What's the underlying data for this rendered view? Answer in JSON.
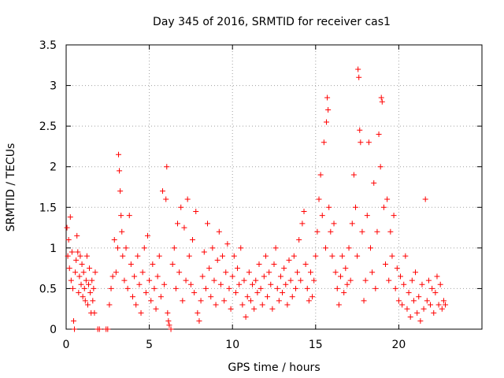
{
  "chart_data": {
    "type": "scatter",
    "title": "Day 345 of 2016, SRMTID for receiver cas1",
    "xlabel": "GPS time / hours",
    "ylabel": "SRMTID / TECUs",
    "xlim": [
      0,
      25
    ],
    "ylim": [
      0,
      3.5
    ],
    "xticks": [
      0,
      5,
      10,
      15,
      20
    ],
    "yticks": [
      0,
      0.5,
      1,
      1.5,
      2,
      2.5,
      3,
      3.5
    ],
    "xtick_labels": [
      "0",
      "5",
      "10",
      "15",
      "20"
    ],
    "ytick_labels": [
      "0",
      "0.5",
      "1",
      "1.5",
      "2",
      "2.5",
      "3",
      "3.5"
    ],
    "grid": true,
    "marker": "+",
    "color": "#ff0000",
    "series": [
      {
        "name": "SRMTID",
        "points": [
          [
            0.05,
            1.25
          ],
          [
            0.1,
            0.9
          ],
          [
            0.15,
            1.1
          ],
          [
            0.2,
            0.75
          ],
          [
            0.25,
            1.38
          ],
          [
            0.3,
            0.6
          ],
          [
            0.35,
            0.95
          ],
          [
            0.4,
            0.5
          ],
          [
            0.45,
            0.1
          ],
          [
            0.5,
            0.0
          ],
          [
            0.55,
            0.7
          ],
          [
            0.6,
            0.85
          ],
          [
            0.65,
            1.15
          ],
          [
            0.7,
            0.95
          ],
          [
            0.75,
            0.45
          ],
          [
            0.8,
            0.65
          ],
          [
            0.85,
            0.9
          ],
          [
            0.9,
            0.55
          ],
          [
            0.95,
            0.8
          ],
          [
            1.0,
            0.4
          ],
          [
            1.05,
            0.7
          ],
          [
            1.1,
            0.5
          ],
          [
            1.15,
            0.35
          ],
          [
            1.2,
            0.6
          ],
          [
            1.25,
            0.9
          ],
          [
            1.3,
            0.3
          ],
          [
            1.35,
            0.55
          ],
          [
            1.4,
            0.75
          ],
          [
            1.45,
            0.45
          ],
          [
            1.5,
            0.2
          ],
          [
            1.55,
            0.6
          ],
          [
            1.6,
            0.35
          ],
          [
            1.65,
            0.5
          ],
          [
            1.7,
            0.2
          ],
          [
            1.75,
            0.7
          ],
          [
            1.9,
            0.0
          ],
          [
            2.0,
            0.0
          ],
          [
            2.4,
            0.0
          ],
          [
            2.5,
            0.0
          ],
          [
            2.6,
            0.3
          ],
          [
            2.7,
            0.5
          ],
          [
            2.8,
            0.65
          ],
          [
            2.9,
            1.1
          ],
          [
            3.0,
            0.7
          ],
          [
            3.1,
            1.0
          ],
          [
            3.15,
            2.15
          ],
          [
            3.2,
            1.95
          ],
          [
            3.25,
            1.7
          ],
          [
            3.3,
            1.4
          ],
          [
            3.35,
            1.2
          ],
          [
            3.4,
            0.9
          ],
          [
            3.5,
            0.6
          ],
          [
            3.6,
            1.0
          ],
          [
            3.7,
            0.5
          ],
          [
            3.8,
            1.4
          ],
          [
            3.9,
            0.8
          ],
          [
            4.0,
            0.4
          ],
          [
            4.1,
            0.65
          ],
          [
            4.2,
            0.3
          ],
          [
            4.3,
            0.9
          ],
          [
            4.4,
            0.55
          ],
          [
            4.5,
            0.2
          ],
          [
            4.6,
            0.7
          ],
          [
            4.7,
            1.0
          ],
          [
            4.8,
            0.45
          ],
          [
            4.9,
            1.15
          ],
          [
            5.0,
            0.6
          ],
          [
            5.1,
            0.35
          ],
          [
            5.2,
            0.8
          ],
          [
            5.3,
            0.5
          ],
          [
            5.4,
            0.25
          ],
          [
            5.5,
            0.65
          ],
          [
            5.6,
            0.9
          ],
          [
            5.7,
            0.4
          ],
          [
            5.8,
            1.7
          ],
          [
            5.9,
            0.55
          ],
          [
            6.0,
            1.6
          ],
          [
            6.05,
            2.0
          ],
          [
            6.1,
            0.2
          ],
          [
            6.15,
            0.1
          ],
          [
            6.2,
            0.05
          ],
          [
            6.3,
            0.0
          ],
          [
            6.4,
            0.8
          ],
          [
            6.5,
            1.0
          ],
          [
            6.6,
            0.5
          ],
          [
            6.7,
            1.3
          ],
          [
            6.8,
            0.7
          ],
          [
            6.9,
            1.5
          ],
          [
            7.0,
            0.35
          ],
          [
            7.1,
            1.25
          ],
          [
            7.2,
            0.6
          ],
          [
            7.3,
            1.6
          ],
          [
            7.4,
            0.9
          ],
          [
            7.5,
            0.55
          ],
          [
            7.6,
            1.1
          ],
          [
            7.7,
            0.45
          ],
          [
            7.8,
            1.45
          ],
          [
            7.9,
            0.2
          ],
          [
            8.0,
            0.1
          ],
          [
            8.1,
            0.35
          ],
          [
            8.2,
            0.65
          ],
          [
            8.3,
            0.95
          ],
          [
            8.4,
            0.5
          ],
          [
            8.5,
            1.3
          ],
          [
            8.6,
            0.75
          ],
          [
            8.7,
            0.4
          ],
          [
            8.8,
            1.0
          ],
          [
            8.9,
            0.6
          ],
          [
            9.0,
            0.3
          ],
          [
            9.1,
            0.85
          ],
          [
            9.2,
            1.2
          ],
          [
            9.3,
            0.55
          ],
          [
            9.4,
            0.9
          ],
          [
            9.5,
            0.35
          ],
          [
            9.6,
            0.7
          ],
          [
            9.7,
            1.05
          ],
          [
            9.8,
            0.5
          ],
          [
            9.9,
            0.25
          ],
          [
            10.0,
            0.65
          ],
          [
            10.1,
            0.9
          ],
          [
            10.2,
            0.45
          ],
          [
            10.3,
            0.75
          ],
          [
            10.4,
            0.55
          ],
          [
            10.5,
            1.0
          ],
          [
            10.6,
            0.3
          ],
          [
            10.7,
            0.6
          ],
          [
            10.8,
            0.15
          ],
          [
            10.9,
            0.4
          ],
          [
            11.0,
            0.7
          ],
          [
            11.1,
            0.35
          ],
          [
            11.2,
            0.55
          ],
          [
            11.3,
            0.25
          ],
          [
            11.4,
            0.6
          ],
          [
            11.5,
            0.45
          ],
          [
            11.6,
            0.8
          ],
          [
            11.7,
            0.5
          ],
          [
            11.8,
            0.3
          ],
          [
            11.9,
            0.65
          ],
          [
            12.0,
            0.9
          ],
          [
            12.1,
            0.4
          ],
          [
            12.2,
            0.7
          ],
          [
            12.3,
            0.55
          ],
          [
            12.4,
            0.25
          ],
          [
            12.5,
            0.8
          ],
          [
            12.6,
            1.0
          ],
          [
            12.7,
            0.5
          ],
          [
            12.8,
            0.35
          ],
          [
            12.9,
            0.65
          ],
          [
            13.0,
            0.45
          ],
          [
            13.1,
            0.75
          ],
          [
            13.2,
            0.55
          ],
          [
            13.3,
            0.3
          ],
          [
            13.4,
            0.85
          ],
          [
            13.5,
            0.6
          ],
          [
            13.6,
            0.4
          ],
          [
            13.7,
            0.9
          ],
          [
            13.8,
            0.5
          ],
          [
            13.9,
            0.7
          ],
          [
            14.0,
            1.1
          ],
          [
            14.1,
            0.6
          ],
          [
            14.2,
            1.3
          ],
          [
            14.3,
            1.45
          ],
          [
            14.4,
            0.8
          ],
          [
            14.5,
            0.5
          ],
          [
            14.6,
            0.35
          ],
          [
            14.7,
            0.7
          ],
          [
            14.8,
            0.4
          ],
          [
            14.9,
            0.6
          ],
          [
            15.0,
            0.9
          ],
          [
            15.1,
            1.2
          ],
          [
            15.2,
            1.6
          ],
          [
            15.3,
            1.9
          ],
          [
            15.4,
            1.4
          ],
          [
            15.5,
            2.3
          ],
          [
            15.6,
            1.0
          ],
          [
            15.65,
            2.55
          ],
          [
            15.7,
            2.85
          ],
          [
            15.75,
            2.7
          ],
          [
            15.8,
            1.5
          ],
          [
            15.9,
            1.2
          ],
          [
            16.0,
            0.9
          ],
          [
            16.1,
            1.3
          ],
          [
            16.2,
            0.7
          ],
          [
            16.3,
            0.5
          ],
          [
            16.4,
            0.3
          ],
          [
            16.5,
            0.65
          ],
          [
            16.6,
            0.9
          ],
          [
            16.7,
            0.45
          ],
          [
            16.8,
            0.75
          ],
          [
            16.9,
            0.55
          ],
          [
            17.0,
            1.0
          ],
          [
            17.1,
            0.6
          ],
          [
            17.2,
            1.3
          ],
          [
            17.3,
            1.9
          ],
          [
            17.4,
            1.5
          ],
          [
            17.5,
            0.9
          ],
          [
            17.55,
            3.2
          ],
          [
            17.6,
            3.1
          ],
          [
            17.65,
            2.45
          ],
          [
            17.7,
            2.3
          ],
          [
            17.8,
            1.2
          ],
          [
            17.9,
            0.35
          ],
          [
            18.0,
            0.6
          ],
          [
            18.1,
            1.4
          ],
          [
            18.2,
            2.3
          ],
          [
            18.3,
            1.0
          ],
          [
            18.4,
            0.7
          ],
          [
            18.5,
            1.8
          ],
          [
            18.6,
            0.5
          ],
          [
            18.7,
            1.2
          ],
          [
            18.8,
            2.4
          ],
          [
            18.9,
            2.0
          ],
          [
            18.95,
            2.85
          ],
          [
            19.0,
            2.8
          ],
          [
            19.1,
            1.5
          ],
          [
            19.2,
            0.8
          ],
          [
            19.3,
            1.6
          ],
          [
            19.4,
            0.6
          ],
          [
            19.5,
            1.2
          ],
          [
            19.6,
            0.9
          ],
          [
            19.7,
            1.4
          ],
          [
            19.8,
            0.5
          ],
          [
            19.9,
            0.75
          ],
          [
            20.0,
            0.35
          ],
          [
            20.1,
            0.65
          ],
          [
            20.2,
            0.3
          ],
          [
            20.3,
            0.55
          ],
          [
            20.4,
            0.9
          ],
          [
            20.5,
            0.25
          ],
          [
            20.6,
            0.45
          ],
          [
            20.7,
            0.15
          ],
          [
            20.8,
            0.6
          ],
          [
            20.9,
            0.35
          ],
          [
            21.0,
            0.7
          ],
          [
            21.1,
            0.2
          ],
          [
            21.2,
            0.4
          ],
          [
            21.3,
            0.1
          ],
          [
            21.4,
            0.55
          ],
          [
            21.5,
            0.25
          ],
          [
            21.6,
            1.6
          ],
          [
            21.7,
            0.35
          ],
          [
            21.8,
            0.6
          ],
          [
            21.9,
            0.3
          ],
          [
            22.0,
            0.5
          ],
          [
            22.1,
            0.2
          ],
          [
            22.2,
            0.45
          ],
          [
            22.3,
            0.65
          ],
          [
            22.4,
            0.3
          ],
          [
            22.5,
            0.55
          ],
          [
            22.6,
            0.25
          ],
          [
            22.7,
            0.35
          ],
          [
            22.8,
            0.3
          ]
        ]
      }
    ]
  }
}
